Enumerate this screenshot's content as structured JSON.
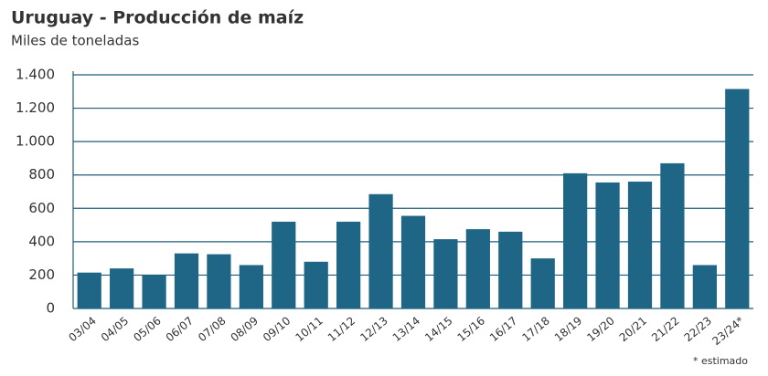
{
  "chart_data": {
    "type": "bar",
    "title": "Uruguay - Producción de maíz",
    "subtitle": "Miles de toneladas",
    "categories": [
      "03/04",
      "04/05",
      "05/06",
      "06/07",
      "07/08",
      "08/09",
      "09/10",
      "10/11",
      "11/12",
      "12/13",
      "13/14",
      "14/15",
      "15/16",
      "16/17",
      "17/18",
      "18/19",
      "19/20",
      "20/21",
      "21/22",
      "22/23",
      "23/24*"
    ],
    "values": [
      215,
      240,
      200,
      330,
      325,
      260,
      520,
      280,
      520,
      685,
      555,
      415,
      475,
      460,
      300,
      810,
      755,
      760,
      870,
      260,
      1315
    ],
    "color": "#1f6585",
    "ylim": [
      0,
      1400
    ],
    "yticks": [
      0,
      200,
      400,
      600,
      800,
      {
        "value": 1000,
        "label": "1.000"
      },
      {
        "value": 1200,
        "label": "1.200"
      },
      {
        "value": 1400,
        "label": "1.400"
      }
    ],
    "grid": true,
    "annotation": "* estimado"
  }
}
